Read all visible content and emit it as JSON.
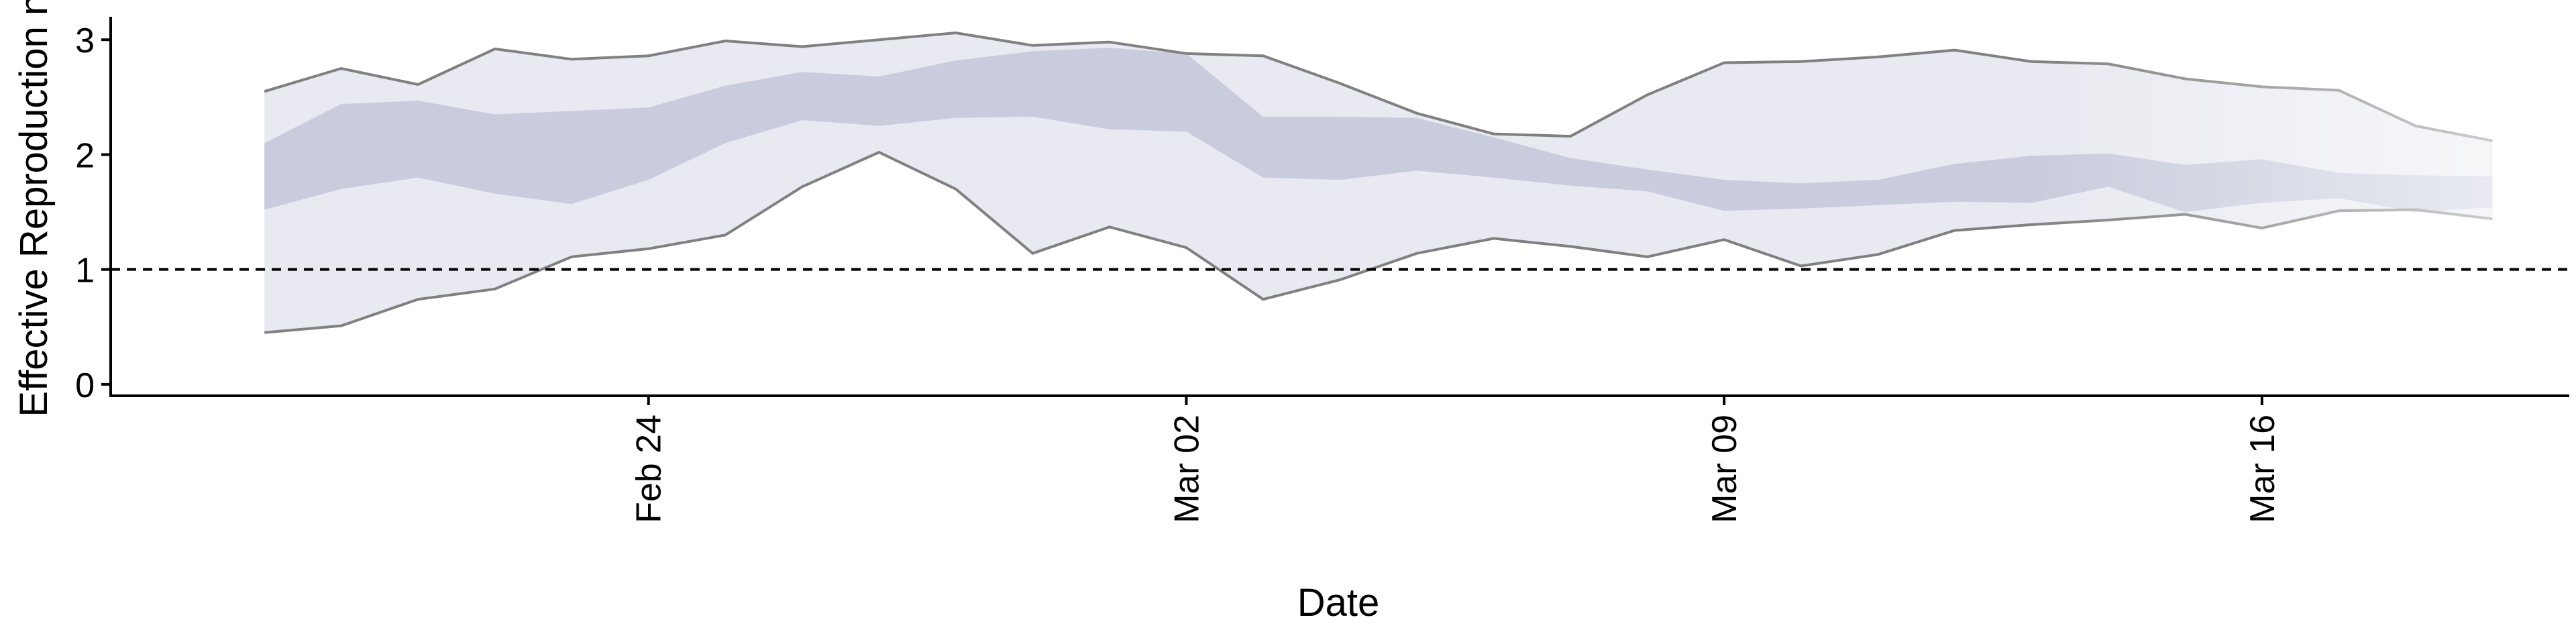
{
  "chart_data": {
    "type": "area",
    "xlabel": "Date",
    "ylabel": "Effective Reproduction no",
    "xlim": [
      "2020-02-17",
      "2020-03-20"
    ],
    "ylim": [
      -0.1,
      3.2
    ],
    "y_ticks": [
      0,
      1,
      2,
      3
    ],
    "x_ticks": [
      {
        "date": "2020-02-24",
        "label": "Feb 24"
      },
      {
        "date": "2020-03-02",
        "label": "Mar 02"
      },
      {
        "date": "2020-03-09",
        "label": "Mar 09"
      },
      {
        "date": "2020-03-16",
        "label": "Mar 16"
      }
    ],
    "reference_line": {
      "y": 1,
      "style": "dashed"
    },
    "grid": false,
    "colors": {
      "outer_band": "#e9eaf1",
      "inner_band": "#c2c7d8",
      "bound_line": "#808080"
    },
    "x": [
      "2020-02-19",
      "2020-02-20",
      "2020-02-21",
      "2020-02-22",
      "2020-02-23",
      "2020-02-24",
      "2020-02-25",
      "2020-02-26",
      "2020-02-27",
      "2020-02-28",
      "2020-02-29",
      "2020-03-01",
      "2020-03-02",
      "2020-03-03",
      "2020-03-04",
      "2020-03-05",
      "2020-03-06",
      "2020-03-07",
      "2020-03-08",
      "2020-03-09",
      "2020-03-10",
      "2020-03-11",
      "2020-03-12",
      "2020-03-13",
      "2020-03-14",
      "2020-03-15",
      "2020-03-16",
      "2020-03-17",
      "2020-03-18",
      "2020-03-19"
    ],
    "series": [
      {
        "values_upper_90": [
          2.55,
          2.75,
          2.61,
          2.92,
          2.83,
          2.86,
          2.99,
          2.94,
          3.0,
          3.06,
          2.95,
          2.98,
          2.88,
          2.86,
          2.62,
          2.36,
          2.18,
          2.16,
          2.52,
          2.8,
          2.81,
          2.85,
          2.91,
          2.81,
          2.79,
          2.66,
          2.59,
          2.56,
          2.25,
          2.12
        ],
        "values_lower_90": [
          0.45,
          0.51,
          0.74,
          0.83,
          1.11,
          1.18,
          1.3,
          1.72,
          2.02,
          1.7,
          1.14,
          1.37,
          1.19,
          0.74,
          0.91,
          1.14,
          1.27,
          1.2,
          1.11,
          1.26,
          1.03,
          1.13,
          1.34,
          1.39,
          1.43,
          1.48,
          1.36,
          1.51,
          1.52,
          1.44
        ],
        "values_upper_50": [
          2.1,
          2.44,
          2.47,
          2.35,
          2.38,
          2.41,
          2.6,
          2.72,
          2.68,
          2.82,
          2.9,
          2.93,
          2.88,
          2.33,
          2.33,
          2.32,
          2.15,
          1.97,
          1.87,
          1.78,
          1.75,
          1.78,
          1.92,
          1.99,
          2.01,
          1.91,
          1.96,
          1.84,
          1.82,
          1.81
        ],
        "values_lower_50": [
          1.52,
          1.7,
          1.8,
          1.66,
          1.57,
          1.78,
          2.1,
          2.3,
          2.25,
          2.32,
          2.33,
          2.22,
          2.2,
          1.8,
          1.78,
          1.86,
          1.8,
          1.73,
          1.68,
          1.51,
          1.53,
          1.56,
          1.59,
          1.58,
          1.72,
          1.5,
          1.58,
          1.62,
          1.5,
          1.54
        ]
      }
    ]
  }
}
